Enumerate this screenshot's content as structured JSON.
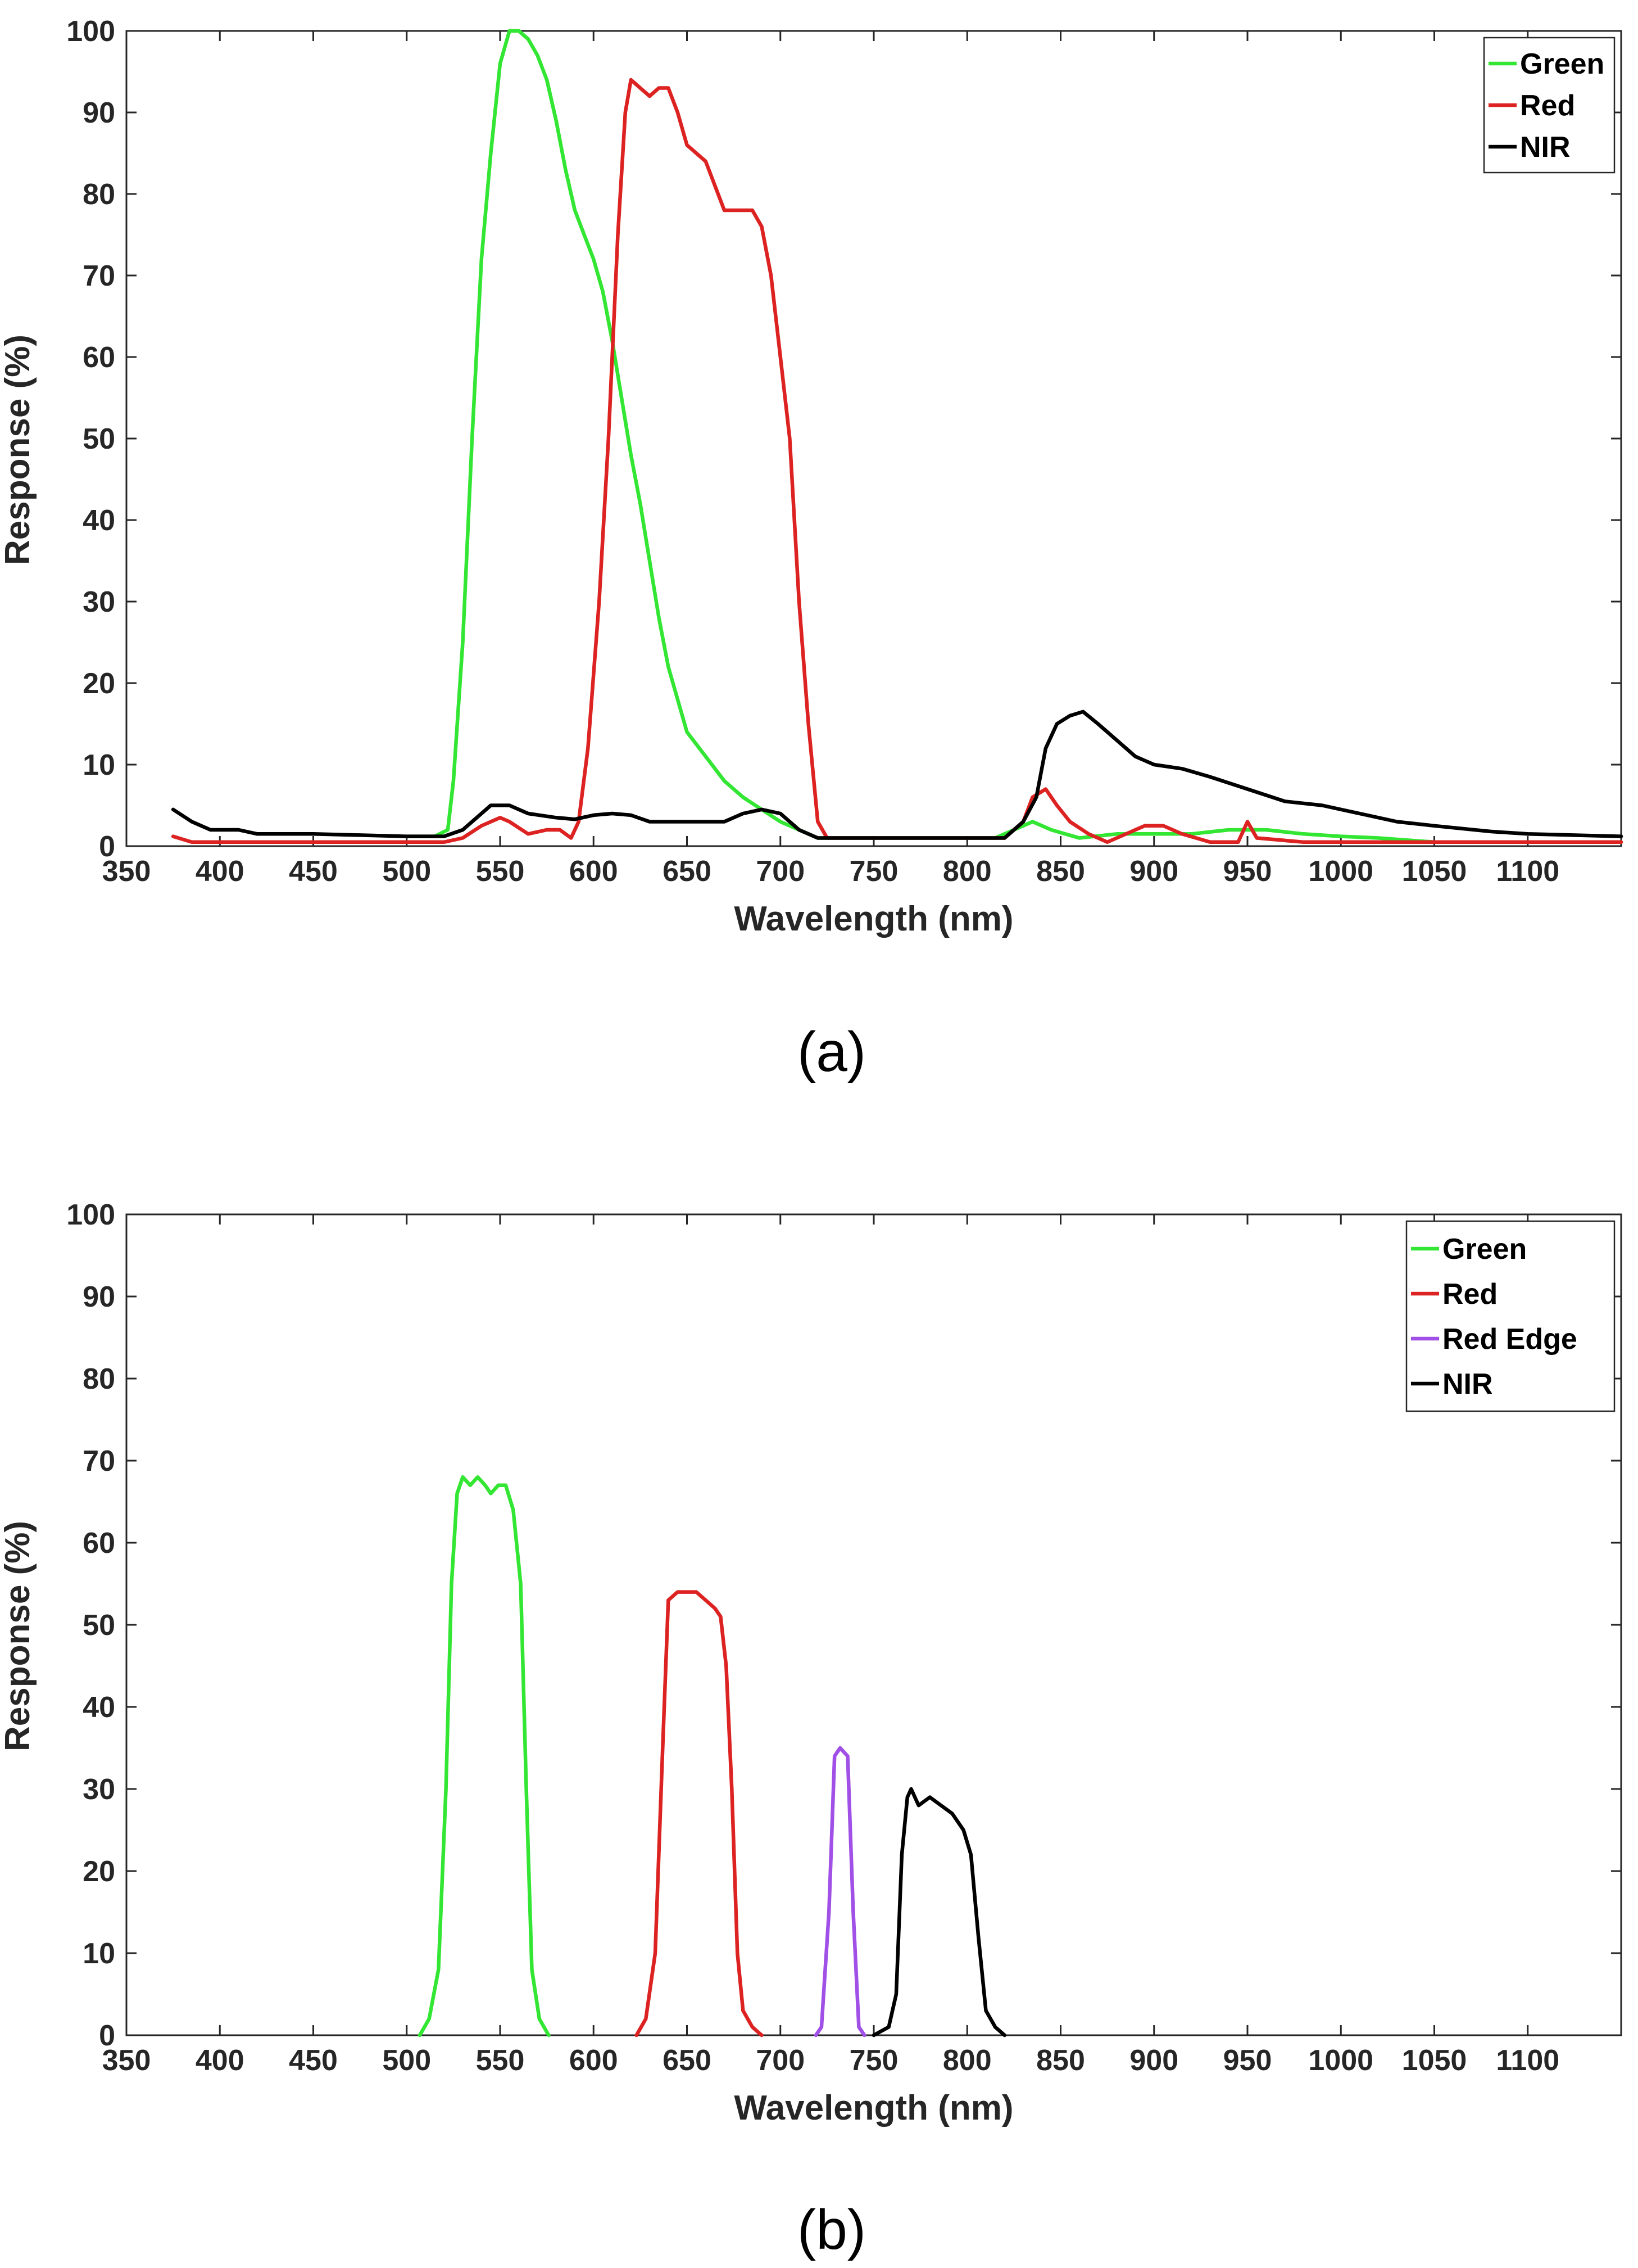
{
  "chart_data": [
    {
      "type": "line",
      "title": "",
      "caption": "(a)",
      "xlabel": "Wavelength (nm)",
      "ylabel": "Response (%)",
      "xlim": [
        350,
        1150
      ],
      "ylim": [
        0,
        100
      ],
      "xticks": [
        350,
        400,
        450,
        500,
        550,
        600,
        650,
        700,
        750,
        800,
        850,
        900,
        950,
        1000,
        1050,
        1100
      ],
      "yticks": [
        0,
        10,
        20,
        30,
        40,
        50,
        60,
        70,
        80,
        90,
        100
      ],
      "legend_position": "top-right",
      "series": [
        {
          "name": "Green",
          "color": "#33e633",
          "points": [
            [
              500,
              1.2
            ],
            [
              515,
              1.2
            ],
            [
              522,
              2
            ],
            [
              525,
              8
            ],
            [
              530,
              25
            ],
            [
              535,
              50
            ],
            [
              540,
              72
            ],
            [
              545,
              85
            ],
            [
              550,
              96
            ],
            [
              555,
              100
            ],
            [
              560,
              100
            ],
            [
              565,
              99
            ],
            [
              570,
              97
            ],
            [
              575,
              94
            ],
            [
              580,
              89
            ],
            [
              585,
              83
            ],
            [
              590,
              78
            ],
            [
              595,
              75
            ],
            [
              600,
              72
            ],
            [
              605,
              68
            ],
            [
              610,
              62
            ],
            [
              615,
              55
            ],
            [
              620,
              48
            ],
            [
              625,
              42
            ],
            [
              630,
              35
            ],
            [
              635,
              28
            ],
            [
              640,
              22
            ],
            [
              645,
              18
            ],
            [
              650,
              14
            ],
            [
              660,
              11
            ],
            [
              670,
              8
            ],
            [
              680,
              6
            ],
            [
              690,
              4.5
            ],
            [
              700,
              3
            ],
            [
              710,
              2
            ],
            [
              720,
              1
            ],
            [
              800,
              1
            ],
            [
              815,
              1
            ],
            [
              825,
              2
            ],
            [
              835,
              3
            ],
            [
              845,
              2
            ],
            [
              860,
              1
            ],
            [
              880,
              1.5
            ],
            [
              900,
              1.5
            ],
            [
              920,
              1.5
            ],
            [
              940,
              2
            ],
            [
              960,
              2
            ],
            [
              980,
              1.5
            ],
            [
              1000,
              1.2
            ],
            [
              1020,
              1
            ],
            [
              1050,
              0.5
            ],
            [
              1150,
              0.5
            ]
          ]
        },
        {
          "name": "Red",
          "color": "#dd2222",
          "points": [
            [
              375,
              1.2
            ],
            [
              385,
              0.5
            ],
            [
              400,
              0.5
            ],
            [
              500,
              0.5
            ],
            [
              520,
              0.5
            ],
            [
              530,
              1
            ],
            [
              540,
              2.5
            ],
            [
              550,
              3.5
            ],
            [
              555,
              3
            ],
            [
              565,
              1.5
            ],
            [
              575,
              2
            ],
            [
              582,
              2
            ],
            [
              588,
              1
            ],
            [
              592,
              3
            ],
            [
              597,
              12
            ],
            [
              603,
              30
            ],
            [
              608,
              50
            ],
            [
              613,
              75
            ],
            [
              617,
              90
            ],
            [
              620,
              94
            ],
            [
              625,
              93
            ],
            [
              630,
              92
            ],
            [
              635,
              93
            ],
            [
              640,
              93
            ],
            [
              645,
              90
            ],
            [
              650,
              86
            ],
            [
              660,
              84
            ],
            [
              665,
              81
            ],
            [
              670,
              78
            ],
            [
              675,
              78
            ],
            [
              685,
              78
            ],
            [
              690,
              76
            ],
            [
              695,
              70
            ],
            [
              700,
              60
            ],
            [
              705,
              50
            ],
            [
              710,
              30
            ],
            [
              715,
              15
            ],
            [
              720,
              3
            ],
            [
              725,
              1
            ],
            [
              800,
              1
            ],
            [
              820,
              1
            ],
            [
              830,
              3
            ],
            [
              835,
              6
            ],
            [
              842,
              7
            ],
            [
              848,
              5
            ],
            [
              855,
              3
            ],
            [
              865,
              1.5
            ],
            [
              875,
              0.5
            ],
            [
              885,
              1.5
            ],
            [
              895,
              2.5
            ],
            [
              905,
              2.5
            ],
            [
              915,
              1.5
            ],
            [
              930,
              0.5
            ],
            [
              945,
              0.5
            ],
            [
              950,
              3
            ],
            [
              955,
              1
            ],
            [
              980,
              0.5
            ],
            [
              1000,
              0.5
            ],
            [
              1150,
              0.5
            ]
          ]
        },
        {
          "name": "NIR",
          "color": "#000000",
          "points": [
            [
              375,
              4.5
            ],
            [
              385,
              3
            ],
            [
              395,
              2
            ],
            [
              410,
              2
            ],
            [
              420,
              1.5
            ],
            [
              450,
              1.5
            ],
            [
              500,
              1.2
            ],
            [
              520,
              1.2
            ],
            [
              530,
              2
            ],
            [
              540,
              4
            ],
            [
              545,
              5
            ],
            [
              555,
              5
            ],
            [
              565,
              4
            ],
            [
              580,
              3.5
            ],
            [
              590,
              3.3
            ],
            [
              600,
              3.8
            ],
            [
              610,
              4
            ],
            [
              620,
              3.8
            ],
            [
              630,
              3
            ],
            [
              650,
              3
            ],
            [
              670,
              3
            ],
            [
              680,
              4
            ],
            [
              690,
              4.5
            ],
            [
              700,
              4
            ],
            [
              710,
              2
            ],
            [
              720,
              1
            ],
            [
              800,
              1
            ],
            [
              820,
              1
            ],
            [
              830,
              3
            ],
            [
              837,
              6
            ],
            [
              842,
              12
            ],
            [
              848,
              15
            ],
            [
              855,
              16
            ],
            [
              862,
              16.5
            ],
            [
              870,
              15
            ],
            [
              880,
              13
            ],
            [
              890,
              11
            ],
            [
              900,
              10
            ],
            [
              915,
              9.5
            ],
            [
              930,
              8.5
            ],
            [
              950,
              7
            ],
            [
              970,
              5.5
            ],
            [
              990,
              5
            ],
            [
              1010,
              4
            ],
            [
              1030,
              3
            ],
            [
              1050,
              2.5
            ],
            [
              1080,
              1.8
            ],
            [
              1100,
              1.5
            ],
            [
              1150,
              1.2
            ]
          ]
        }
      ]
    },
    {
      "type": "line",
      "title": "",
      "caption": "(b)",
      "xlabel": "Wavelength (nm)",
      "ylabel": "Response (%)",
      "xlim": [
        350,
        1150
      ],
      "ylim": [
        0,
        100
      ],
      "xticks": [
        350,
        400,
        450,
        500,
        550,
        600,
        650,
        700,
        750,
        800,
        850,
        900,
        950,
        1000,
        1050,
        1100
      ],
      "yticks": [
        0,
        10,
        20,
        30,
        40,
        50,
        60,
        70,
        80,
        90,
        100
      ],
      "legend_position": "top-right",
      "series": [
        {
          "name": "Green",
          "color": "#33e633",
          "points": [
            [
              507,
              0
            ],
            [
              512,
              2
            ],
            [
              517,
              8
            ],
            [
              521,
              30
            ],
            [
              524,
              55
            ],
            [
              527,
              66
            ],
            [
              530,
              68
            ],
            [
              534,
              67
            ],
            [
              538,
              68
            ],
            [
              542,
              67
            ],
            [
              545,
              66
            ],
            [
              549,
              67
            ],
            [
              553,
              67
            ],
            [
              557,
              64
            ],
            [
              561,
              55
            ],
            [
              564,
              30
            ],
            [
              567,
              8
            ],
            [
              571,
              2
            ],
            [
              576,
              0
            ]
          ]
        },
        {
          "name": "Red",
          "color": "#dd2222",
          "points": [
            [
              623,
              0
            ],
            [
              628,
              2
            ],
            [
              633,
              10
            ],
            [
              637,
              35
            ],
            [
              640,
              53
            ],
            [
              645,
              54
            ],
            [
              650,
              54
            ],
            [
              655,
              54
            ],
            [
              660,
              53
            ],
            [
              665,
              52
            ],
            [
              668,
              51
            ],
            [
              671,
              45
            ],
            [
              674,
              30
            ],
            [
              677,
              10
            ],
            [
              680,
              3
            ],
            [
              685,
              1
            ],
            [
              690,
              0
            ]
          ]
        },
        {
          "name": "Red Edge",
          "color": "#a050e6",
          "points": [
            [
              719,
              0
            ],
            [
              722,
              1
            ],
            [
              726,
              15
            ],
            [
              729,
              34
            ],
            [
              732,
              35
            ],
            [
              736,
              34
            ],
            [
              739,
              15
            ],
            [
              742,
              1
            ],
            [
              745,
              0
            ]
          ]
        },
        {
          "name": "NIR",
          "color": "#000000",
          "points": [
            [
              750,
              0
            ],
            [
              758,
              1
            ],
            [
              762,
              5
            ],
            [
              765,
              22
            ],
            [
              768,
              29
            ],
            [
              770,
              30
            ],
            [
              774,
              28
            ],
            [
              780,
              29
            ],
            [
              786,
              28
            ],
            [
              792,
              27
            ],
            [
              798,
              25
            ],
            [
              802,
              22
            ],
            [
              806,
              12
            ],
            [
              810,
              3
            ],
            [
              815,
              1
            ],
            [
              820,
              0
            ]
          ]
        }
      ]
    }
  ]
}
